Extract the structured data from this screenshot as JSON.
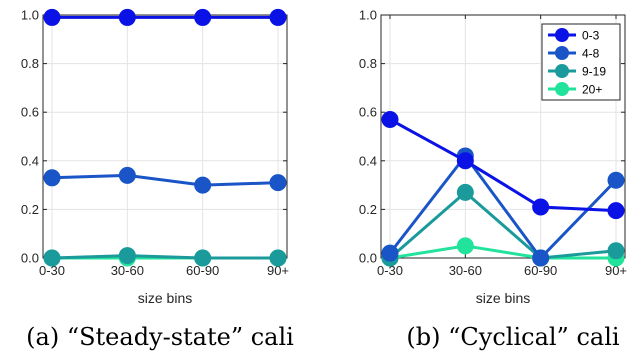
{
  "chart_data": [
    {
      "type": "line",
      "categories": [
        "0-30",
        "30-60",
        "60-90",
        "90+"
      ],
      "xlabel": "size bins",
      "ylim": [
        0,
        1.0
      ],
      "yticks": [
        "0.0",
        "0.2",
        "0.4",
        "0.6",
        "0.8",
        "1.0"
      ],
      "grid": true,
      "series": [
        {
          "color": "#0b12e6",
          "values": [
            0.99,
            0.99,
            0.99,
            0.99
          ]
        },
        {
          "color": "#1a55c8",
          "values": [
            0.33,
            0.34,
            0.3,
            0.31
          ]
        },
        {
          "color": "#1a9a9a",
          "values": [
            0.0,
            0.01,
            0.0,
            0.0
          ]
        },
        {
          "color": "#22e39b",
          "values": [
            0.0,
            0.0,
            0.0,
            0.0
          ]
        }
      ],
      "caption": "(a) “Steady-state” cali"
    },
    {
      "type": "line",
      "categories": [
        "0-30",
        "30-60",
        "60-90",
        "90+"
      ],
      "xlabel": "size bins",
      "ylim": [
        0,
        1.0
      ],
      "yticks": [
        "0.0",
        "0.2",
        "0.4",
        "0.6",
        "0.8",
        "1.0"
      ],
      "grid": true,
      "legend_position": "top-right",
      "series": [
        {
          "name": "0-3",
          "color": "#0b12e6",
          "values": [
            0.57,
            0.4,
            0.21,
            0.195
          ]
        },
        {
          "name": "4-8",
          "color": "#1a55c8",
          "values": [
            0.02,
            0.42,
            0.0,
            0.32
          ]
        },
        {
          "name": "9-19",
          "color": "#1a9a9a",
          "values": [
            0.0,
            0.27,
            0.0,
            0.03
          ]
        },
        {
          "name": "20+",
          "color": "#22e39b",
          "values": [
            0.0,
            0.05,
            0.0,
            0.0
          ]
        }
      ],
      "caption": "(b) “Cyclical” cali"
    }
  ]
}
